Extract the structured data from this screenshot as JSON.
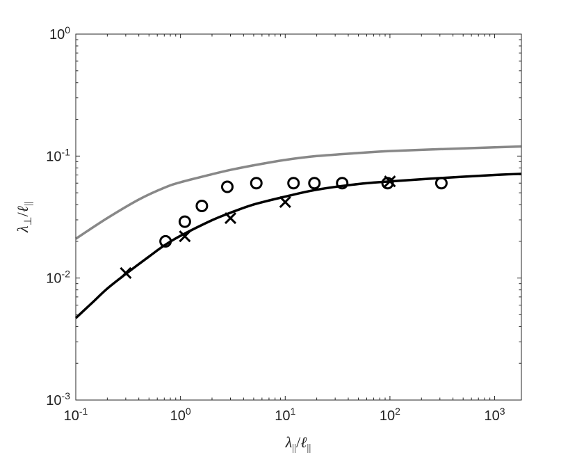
{
  "chart_data": {
    "type": "line",
    "title": "",
    "xlabel": {
      "main": "λ",
      "sub": "||",
      "sep": "/",
      "main2": "ℓ",
      "sub2": "||"
    },
    "ylabel": {
      "main": "λ",
      "sub": "⊥",
      "sep": "/",
      "main2": "ℓ",
      "sub2": "||"
    },
    "xscale": "log",
    "yscale": "log",
    "xlim": [
      0.1,
      1800
    ],
    "ylim": [
      0.001,
      1
    ],
    "x_ticks": [
      {
        "value": 0.1,
        "base": "10",
        "exp": "-1"
      },
      {
        "value": 1,
        "base": "10",
        "exp": "0"
      },
      {
        "value": 10,
        "base": "10",
        "exp": "1"
      },
      {
        "value": 100,
        "base": "10",
        "exp": "2"
      },
      {
        "value": 1000,
        "base": "10",
        "exp": "3"
      }
    ],
    "y_ticks": [
      {
        "value": 0.001,
        "base": "10",
        "exp": "-3"
      },
      {
        "value": 0.01,
        "base": "10",
        "exp": "-2"
      },
      {
        "value": 0.1,
        "base": "10",
        "exp": "-1"
      },
      {
        "value": 1,
        "base": "10",
        "exp": "0"
      }
    ],
    "grid": false,
    "series": [
      {
        "kind": "line",
        "color": "#888888",
        "x": [
          0.1,
          0.2,
          0.4,
          0.7,
          1,
          2,
          3,
          5,
          10,
          20,
          50,
          100,
          300,
          1000,
          1800
        ],
        "y": [
          0.021,
          0.031,
          0.044,
          0.055,
          0.061,
          0.071,
          0.077,
          0.084,
          0.093,
          0.1,
          0.106,
          0.11,
          0.114,
          0.118,
          0.12
        ]
      },
      {
        "kind": "line",
        "color": "#000000",
        "x": [
          0.1,
          0.15,
          0.2,
          0.3,
          0.5,
          0.7,
          1,
          2,
          3,
          5,
          10,
          20,
          50,
          100,
          300,
          1000,
          1800
        ],
        "y": [
          0.0047,
          0.0065,
          0.0082,
          0.0108,
          0.015,
          0.0185,
          0.0222,
          0.0298,
          0.0343,
          0.0401,
          0.0465,
          0.053,
          0.059,
          0.062,
          0.066,
          0.07,
          0.0715
        ]
      },
      {
        "kind": "scatter",
        "marker": "circle",
        "color": "#000000",
        "x": [
          0.72,
          1.1,
          1.6,
          2.8,
          5.3,
          12,
          19,
          35,
          95,
          310
        ],
        "y": [
          0.02,
          0.029,
          0.039,
          0.056,
          0.06,
          0.06,
          0.06,
          0.06,
          0.06,
          0.06
        ]
      },
      {
        "kind": "scatter",
        "marker": "x",
        "color": "#000000",
        "x": [
          0.3,
          1.1,
          3,
          10,
          100
        ],
        "y": [
          0.011,
          0.022,
          0.031,
          0.042,
          0.062
        ]
      }
    ]
  }
}
